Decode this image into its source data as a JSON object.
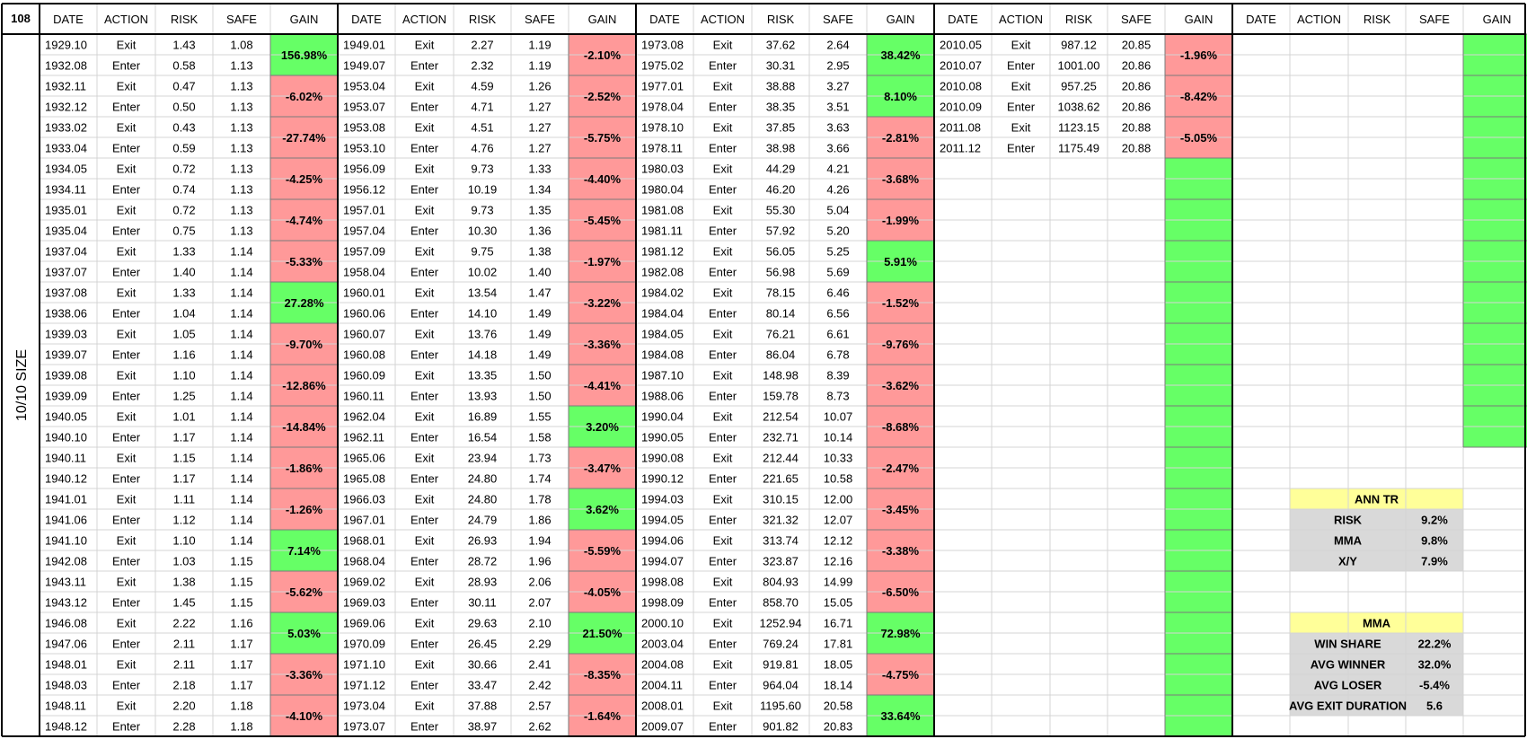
{
  "corner_label": "108",
  "vertical_label": "10/10 SIZE",
  "headers": [
    "DATE",
    "ACTION",
    "RISK",
    "SAFE",
    "GAIN"
  ],
  "colors": {
    "green": "#66FF66",
    "red": "#FF9999",
    "yellow": "#FFFF99",
    "gray": "#D9D9D9",
    "grid": "#D4D4D4",
    "line": "#000000"
  },
  "blocks": [
    {
      "rows": [
        [
          "1929.10",
          "Exit",
          "1.43",
          "1.08"
        ],
        [
          "1932.08",
          "Enter",
          "0.58",
          "1.13"
        ],
        [
          "1932.11",
          "Exit",
          "0.47",
          "1.13"
        ],
        [
          "1932.12",
          "Enter",
          "0.50",
          "1.13"
        ],
        [
          "1933.02",
          "Exit",
          "0.43",
          "1.13"
        ],
        [
          "1933.04",
          "Enter",
          "0.59",
          "1.13"
        ],
        [
          "1934.05",
          "Exit",
          "0.72",
          "1.13"
        ],
        [
          "1934.11",
          "Enter",
          "0.74",
          "1.13"
        ],
        [
          "1935.01",
          "Exit",
          "0.72",
          "1.13"
        ],
        [
          "1935.04",
          "Enter",
          "0.75",
          "1.13"
        ],
        [
          "1937.04",
          "Exit",
          "1.33",
          "1.14"
        ],
        [
          "1937.07",
          "Enter",
          "1.40",
          "1.14"
        ],
        [
          "1937.08",
          "Exit",
          "1.33",
          "1.14"
        ],
        [
          "1938.06",
          "Enter",
          "1.04",
          "1.14"
        ],
        [
          "1939.03",
          "Exit",
          "1.05",
          "1.14"
        ],
        [
          "1939.07",
          "Enter",
          "1.16",
          "1.14"
        ],
        [
          "1939.08",
          "Exit",
          "1.10",
          "1.14"
        ],
        [
          "1939.09",
          "Enter",
          "1.25",
          "1.14"
        ],
        [
          "1940.05",
          "Exit",
          "1.01",
          "1.14"
        ],
        [
          "1940.10",
          "Enter",
          "1.17",
          "1.14"
        ],
        [
          "1940.11",
          "Exit",
          "1.15",
          "1.14"
        ],
        [
          "1940.12",
          "Enter",
          "1.17",
          "1.14"
        ],
        [
          "1941.01",
          "Exit",
          "1.11",
          "1.14"
        ],
        [
          "1941.06",
          "Enter",
          "1.12",
          "1.14"
        ],
        [
          "1941.10",
          "Exit",
          "1.10",
          "1.14"
        ],
        [
          "1942.08",
          "Enter",
          "1.03",
          "1.15"
        ],
        [
          "1943.11",
          "Exit",
          "1.38",
          "1.15"
        ],
        [
          "1943.12",
          "Enter",
          "1.45",
          "1.15"
        ],
        [
          "1946.08",
          "Exit",
          "2.22",
          "1.16"
        ],
        [
          "1947.06",
          "Enter",
          "2.11",
          "1.17"
        ],
        [
          "1948.01",
          "Exit",
          "2.11",
          "1.17"
        ],
        [
          "1948.03",
          "Enter",
          "2.18",
          "1.17"
        ],
        [
          "1948.11",
          "Exit",
          "2.20",
          "1.18"
        ],
        [
          "1948.12",
          "Enter",
          "2.28",
          "1.18"
        ]
      ],
      "gains": [
        {
          "text": "156.98%",
          "color": "green"
        },
        {
          "text": "-6.02%",
          "color": "red"
        },
        {
          "text": "-27.74%",
          "color": "red"
        },
        {
          "text": "-4.25%",
          "color": "red"
        },
        {
          "text": "-4.74%",
          "color": "red"
        },
        {
          "text": "-5.33%",
          "color": "red"
        },
        {
          "text": "27.28%",
          "color": "green"
        },
        {
          "text": "-9.70%",
          "color": "red"
        },
        {
          "text": "-12.86%",
          "color": "red"
        },
        {
          "text": "-14.84%",
          "color": "red"
        },
        {
          "text": "-1.86%",
          "color": "red"
        },
        {
          "text": "-1.26%",
          "color": "red"
        },
        {
          "text": "7.14%",
          "color": "green"
        },
        {
          "text": "-5.62%",
          "color": "red"
        },
        {
          "text": "5.03%",
          "color": "green"
        },
        {
          "text": "-3.36%",
          "color": "red"
        },
        {
          "text": "-4.10%",
          "color": "red"
        }
      ]
    },
    {
      "rows": [
        [
          "1949.01",
          "Exit",
          "2.27",
          "1.19"
        ],
        [
          "1949.07",
          "Enter",
          "2.32",
          "1.19"
        ],
        [
          "1953.04",
          "Exit",
          "4.59",
          "1.26"
        ],
        [
          "1953.07",
          "Enter",
          "4.71",
          "1.27"
        ],
        [
          "1953.08",
          "Exit",
          "4.51",
          "1.27"
        ],
        [
          "1953.10",
          "Enter",
          "4.76",
          "1.27"
        ],
        [
          "1956.09",
          "Exit",
          "9.73",
          "1.33"
        ],
        [
          "1956.12",
          "Enter",
          "10.19",
          "1.34"
        ],
        [
          "1957.01",
          "Exit",
          "9.73",
          "1.35"
        ],
        [
          "1957.04",
          "Enter",
          "10.30",
          "1.36"
        ],
        [
          "1957.09",
          "Exit",
          "9.75",
          "1.38"
        ],
        [
          "1958.04",
          "Enter",
          "10.02",
          "1.40"
        ],
        [
          "1960.01",
          "Exit",
          "13.54",
          "1.47"
        ],
        [
          "1960.06",
          "Enter",
          "14.10",
          "1.49"
        ],
        [
          "1960.07",
          "Exit",
          "13.76",
          "1.49"
        ],
        [
          "1960.08",
          "Enter",
          "14.18",
          "1.49"
        ],
        [
          "1960.09",
          "Exit",
          "13.35",
          "1.50"
        ],
        [
          "1960.11",
          "Enter",
          "13.93",
          "1.50"
        ],
        [
          "1962.04",
          "Exit",
          "16.89",
          "1.55"
        ],
        [
          "1962.11",
          "Enter",
          "16.54",
          "1.58"
        ],
        [
          "1965.06",
          "Exit",
          "23.94",
          "1.73"
        ],
        [
          "1965.08",
          "Enter",
          "24.80",
          "1.74"
        ],
        [
          "1966.03",
          "Exit",
          "24.80",
          "1.78"
        ],
        [
          "1967.01",
          "Enter",
          "24.79",
          "1.86"
        ],
        [
          "1968.01",
          "Exit",
          "26.93",
          "1.94"
        ],
        [
          "1968.04",
          "Enter",
          "28.72",
          "1.96"
        ],
        [
          "1969.02",
          "Exit",
          "28.93",
          "2.06"
        ],
        [
          "1969.03",
          "Enter",
          "30.11",
          "2.07"
        ],
        [
          "1969.06",
          "Exit",
          "29.63",
          "2.10"
        ],
        [
          "1970.09",
          "Enter",
          "26.45",
          "2.29"
        ],
        [
          "1971.10",
          "Exit",
          "30.66",
          "2.41"
        ],
        [
          "1971.12",
          "Enter",
          "33.47",
          "2.42"
        ],
        [
          "1973.04",
          "Exit",
          "37.88",
          "2.57"
        ],
        [
          "1973.07",
          "Enter",
          "38.97",
          "2.62"
        ]
      ],
      "gains": [
        {
          "text": "-2.10%",
          "color": "red"
        },
        {
          "text": "-2.52%",
          "color": "red"
        },
        {
          "text": "-5.75%",
          "color": "red"
        },
        {
          "text": "-4.40%",
          "color": "red"
        },
        {
          "text": "-5.45%",
          "color": "red"
        },
        {
          "text": "-1.97%",
          "color": "red"
        },
        {
          "text": "-3.22%",
          "color": "red"
        },
        {
          "text": "-3.36%",
          "color": "red"
        },
        {
          "text": "-4.41%",
          "color": "red"
        },
        {
          "text": "3.20%",
          "color": "green"
        },
        {
          "text": "-3.47%",
          "color": "red"
        },
        {
          "text": "3.62%",
          "color": "green"
        },
        {
          "text": "-5.59%",
          "color": "red"
        },
        {
          "text": "-4.05%",
          "color": "red"
        },
        {
          "text": "21.50%",
          "color": "green"
        },
        {
          "text": "-8.35%",
          "color": "red"
        },
        {
          "text": "-1.64%",
          "color": "red"
        }
      ]
    },
    {
      "rows": [
        [
          "1973.08",
          "Exit",
          "37.62",
          "2.64"
        ],
        [
          "1975.02",
          "Enter",
          "30.31",
          "2.95"
        ],
        [
          "1977.01",
          "Exit",
          "38.88",
          "3.27"
        ],
        [
          "1978.04",
          "Enter",
          "38.35",
          "3.51"
        ],
        [
          "1978.10",
          "Exit",
          "37.85",
          "3.63"
        ],
        [
          "1978.11",
          "Enter",
          "38.98",
          "3.66"
        ],
        [
          "1980.03",
          "Exit",
          "44.29",
          "4.21"
        ],
        [
          "1980.04",
          "Enter",
          "46.20",
          "4.26"
        ],
        [
          "1981.08",
          "Exit",
          "55.30",
          "5.04"
        ],
        [
          "1981.11",
          "Enter",
          "57.92",
          "5.20"
        ],
        [
          "1981.12",
          "Exit",
          "56.05",
          "5.25"
        ],
        [
          "1982.08",
          "Enter",
          "56.98",
          "5.69"
        ],
        [
          "1984.02",
          "Exit",
          "78.15",
          "6.46"
        ],
        [
          "1984.04",
          "Enter",
          "80.14",
          "6.56"
        ],
        [
          "1984.05",
          "Exit",
          "76.21",
          "6.61"
        ],
        [
          "1984.08",
          "Enter",
          "86.04",
          "6.78"
        ],
        [
          "1987.10",
          "Exit",
          "148.98",
          "8.39"
        ],
        [
          "1988.06",
          "Enter",
          "159.78",
          "8.73"
        ],
        [
          "1990.04",
          "Exit",
          "212.54",
          "10.07"
        ],
        [
          "1990.05",
          "Enter",
          "232.71",
          "10.14"
        ],
        [
          "1990.08",
          "Exit",
          "212.44",
          "10.33"
        ],
        [
          "1990.12",
          "Enter",
          "221.65",
          "10.58"
        ],
        [
          "1994.03",
          "Exit",
          "310.15",
          "12.00"
        ],
        [
          "1994.05",
          "Enter",
          "321.32",
          "12.07"
        ],
        [
          "1994.06",
          "Exit",
          "313.74",
          "12.12"
        ],
        [
          "1994.07",
          "Enter",
          "323.87",
          "12.16"
        ],
        [
          "1998.08",
          "Exit",
          "804.93",
          "14.99"
        ],
        [
          "1998.09",
          "Enter",
          "858.70",
          "15.05"
        ],
        [
          "2000.10",
          "Exit",
          "1252.94",
          "16.71"
        ],
        [
          "2003.04",
          "Enter",
          "769.24",
          "17.81"
        ],
        [
          "2004.08",
          "Exit",
          "919.81",
          "18.05"
        ],
        [
          "2004.11",
          "Enter",
          "964.04",
          "18.14"
        ],
        [
          "2008.01",
          "Exit",
          "1195.60",
          "20.58"
        ],
        [
          "2009.07",
          "Enter",
          "901.82",
          "20.83"
        ]
      ],
      "gains": [
        {
          "text": "38.42%",
          "color": "green"
        },
        {
          "text": "8.10%",
          "color": "green"
        },
        {
          "text": "-2.81%",
          "color": "red"
        },
        {
          "text": "-3.68%",
          "color": "red"
        },
        {
          "text": "-1.99%",
          "color": "red"
        },
        {
          "text": "5.91%",
          "color": "green"
        },
        {
          "text": "-1.52%",
          "color": "red"
        },
        {
          "text": "-9.76%",
          "color": "red"
        },
        {
          "text": "-3.62%",
          "color": "red"
        },
        {
          "text": "-8.68%",
          "color": "red"
        },
        {
          "text": "-2.47%",
          "color": "red"
        },
        {
          "text": "-3.45%",
          "color": "red"
        },
        {
          "text": "-3.38%",
          "color": "red"
        },
        {
          "text": "-6.50%",
          "color": "red"
        },
        {
          "text": "72.98%",
          "color": "green"
        },
        {
          "text": "-4.75%",
          "color": "red"
        },
        {
          "text": "33.64%",
          "color": "green"
        }
      ]
    },
    {
      "rows": [
        [
          "2010.05",
          "Exit",
          "987.12",
          "20.85"
        ],
        [
          "2010.07",
          "Enter",
          "1001.00",
          "20.86"
        ],
        [
          "2010.08",
          "Exit",
          "957.25",
          "20.86"
        ],
        [
          "2010.09",
          "Enter",
          "1038.62",
          "20.86"
        ],
        [
          "2011.08",
          "Exit",
          "1123.15",
          "20.88"
        ],
        [
          "2011.12",
          "Enter",
          "1175.49",
          "20.88"
        ]
      ],
      "gains": [
        {
          "text": "-1.96%",
          "color": "red"
        },
        {
          "text": "-8.42%",
          "color": "red"
        },
        {
          "text": "-5.05%",
          "color": "red"
        },
        {
          "text": "",
          "color": "green"
        },
        {
          "text": "",
          "color": "green"
        },
        {
          "text": "",
          "color": "green"
        },
        {
          "text": "",
          "color": "green"
        },
        {
          "text": "",
          "color": "green"
        },
        {
          "text": "",
          "color": "green"
        },
        {
          "text": "",
          "color": "green"
        },
        {
          "text": "",
          "color": "green"
        },
        {
          "text": "",
          "color": "green"
        },
        {
          "text": "",
          "color": "green"
        },
        {
          "text": "",
          "color": "green"
        },
        {
          "text": "",
          "color": "green"
        },
        {
          "text": "",
          "color": "green"
        },
        {
          "text": "",
          "color": "green"
        }
      ]
    },
    {
      "rows": [],
      "gains": [
        {
          "text": "",
          "color": "green"
        },
        {
          "text": "",
          "color": "green"
        },
        {
          "text": "",
          "color": "green"
        },
        {
          "text": "",
          "color": "green"
        },
        {
          "text": "",
          "color": "green"
        },
        {
          "text": "",
          "color": "green"
        },
        {
          "text": "",
          "color": "green"
        },
        {
          "text": "",
          "color": "green"
        },
        {
          "text": "",
          "color": "green"
        },
        {
          "text": "",
          "color": "green"
        }
      ]
    }
  ],
  "summary_ann_tr": {
    "title": "ANN TR",
    "rows": [
      {
        "label": "RISK",
        "value": "9.2%"
      },
      {
        "label": "MMA",
        "value": "9.8%"
      },
      {
        "label": "X/Y",
        "value": "7.9%"
      }
    ]
  },
  "summary_mma": {
    "title": "MMA",
    "rows": [
      {
        "label": "WIN SHARE",
        "value": "22.2%"
      },
      {
        "label": "AVG WINNER",
        "value": "32.0%"
      },
      {
        "label": "AVG LOSER",
        "value": "-5.4%"
      },
      {
        "label": "AVG EXIT DURATION",
        "value": "5.6"
      }
    ]
  }
}
